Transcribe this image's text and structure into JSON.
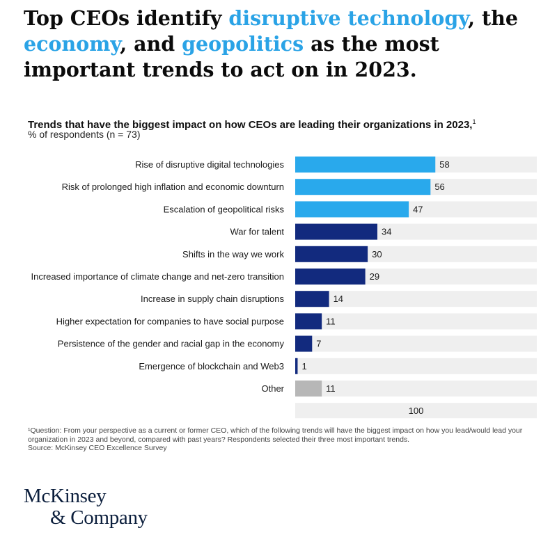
{
  "headline": {
    "parts": [
      {
        "text": "Top CEOs identify ",
        "highlight": false
      },
      {
        "text": "disruptive technology",
        "highlight": true
      },
      {
        "text": ", the ",
        "highlight": false
      },
      {
        "text": "economy",
        "highlight": true
      },
      {
        "text": ", and ",
        "highlight": false
      },
      {
        "text": "geopolitics",
        "highlight": true
      },
      {
        "text": " as the most important trends to act on in 2023.",
        "highlight": false
      }
    ]
  },
  "chart_title": "Trends that have the biggest impact on how CEOs are leading their organizations in 2023,",
  "chart_title_sup": "1",
  "chart_subtitle": "% of respondents (n = 73)",
  "chart_data": {
    "type": "bar",
    "orientation": "horizontal",
    "categories": [
      "Rise of disruptive digital technologies",
      "Risk of prolonged high inflation and economic downturn",
      "Escalation of geopolitical risks",
      "War for talent",
      "Shifts in the way we work",
      "Increased importance of climate change and net-zero transition",
      "Increase in supply chain disruptions",
      "Higher expectation for companies to have social purpose",
      "Persistence of the gender and racial gap in the economy",
      "Emergence of blockchain and Web3",
      "Other"
    ],
    "values": [
      58,
      56,
      47,
      34,
      30,
      29,
      14,
      11,
      7,
      1,
      11
    ],
    "groups": [
      "top",
      "top",
      "top",
      "main",
      "main",
      "main",
      "main",
      "main",
      "main",
      "main",
      "other"
    ],
    "xlim": [
      0,
      100
    ],
    "axis_label": "100",
    "colors": {
      "top": "#29a9ec",
      "main": "#122a7e",
      "other": "#b7b7b7",
      "track": "#efefef"
    },
    "grid": false,
    "legend": "none"
  },
  "footnote_lines": [
    "¹Question: From your perspective as a current or former CEO, which of the following trends will have the biggest impact on how you lead/would lead your",
    "organization in 2023 and beyond, compared with past years? Respondents selected their three most important trends.",
    "Source: McKinsey CEO Excellence Survey"
  ],
  "logo_lines": [
    "McKinsey",
    "& Company"
  ]
}
